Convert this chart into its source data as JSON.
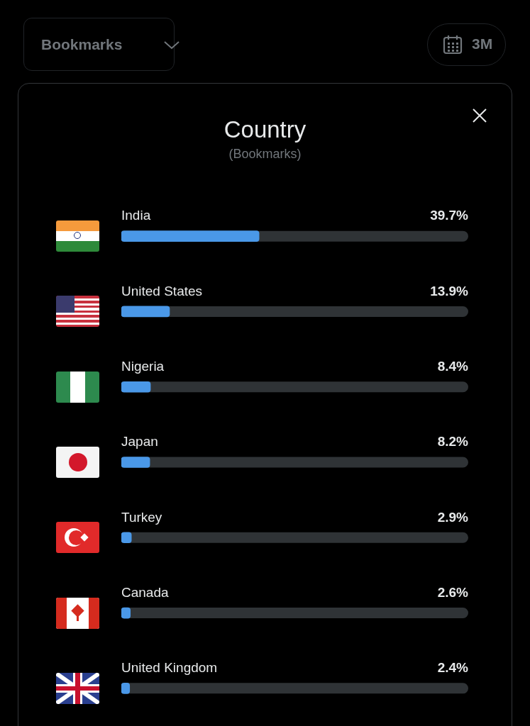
{
  "chart_data": {
    "type": "bar",
    "orientation": "horizontal",
    "title": "Country",
    "subtitle": "(Bookmarks)",
    "categories": [
      "India",
      "United States",
      "Nigeria",
      "Japan",
      "Turkey",
      "Canada",
      "United Kingdom"
    ],
    "values": [
      39.7,
      13.9,
      8.4,
      8.2,
      2.9,
      2.6,
      2.4
    ],
    "value_labels": [
      "39.7%",
      "13.9%",
      "8.4%",
      "8.2%",
      "2.9%",
      "2.6%",
      "2.4%"
    ],
    "color": "#4a98e8",
    "xlim": [
      0,
      100
    ],
    "tick_labels": false,
    "grid": false,
    "legend": false,
    "annotations": [
      "Bookmarks",
      "3M"
    ]
  }
}
